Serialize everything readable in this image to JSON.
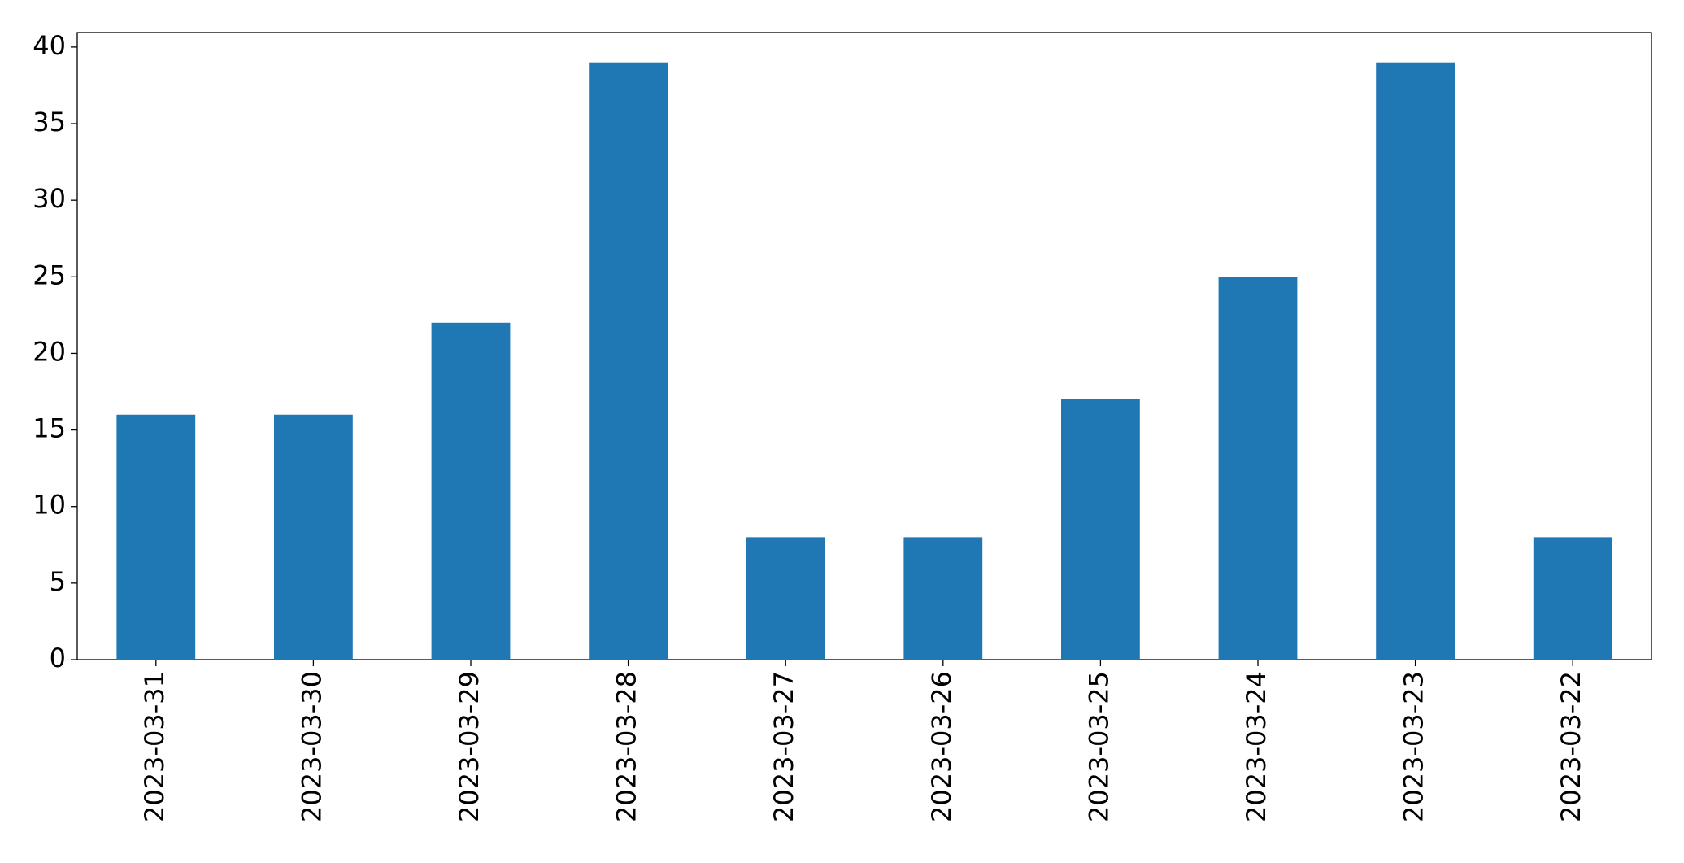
{
  "chart_data": {
    "type": "bar",
    "categories": [
      "2023-03-31",
      "2023-03-30",
      "2023-03-29",
      "2023-03-28",
      "2023-03-27",
      "2023-03-26",
      "2023-03-25",
      "2023-03-24",
      "2023-03-23",
      "2023-03-22"
    ],
    "values": [
      16,
      16,
      22,
      39,
      8,
      8,
      17,
      25,
      39,
      8
    ],
    "color": "#1f77b4",
    "ylim": [
      0,
      40.95
    ],
    "yticks": [
      0,
      5,
      10,
      15,
      20,
      25,
      30,
      35,
      40
    ],
    "grid": false
  }
}
